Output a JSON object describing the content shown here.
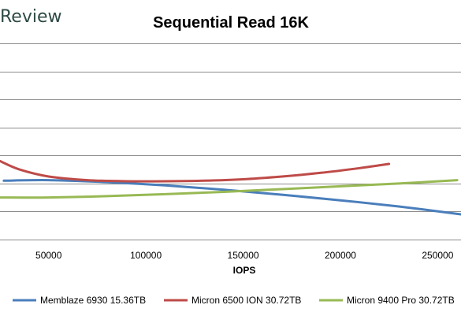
{
  "watermark": "Review",
  "chart_data": {
    "type": "line",
    "title": "Sequential Read 16K",
    "xlabel": "IOPS",
    "ylabel": "",
    "xlim": [
      25000,
      262000
    ],
    "ylim": [
      0,
      7
    ],
    "y_gridlines": [
      0,
      1,
      2,
      3,
      4,
      5,
      6,
      7
    ],
    "x_ticks": [
      50000,
      100000,
      150000,
      200000,
      250000
    ],
    "x_tick_labels": [
      "50000",
      "100000",
      "150000",
      "200000",
      "250000"
    ],
    "grid": "horizontal",
    "legend_position": "bottom",
    "series": [
      {
        "name": "Memblaze 6930 15.36TB",
        "color": "#4a7ebb",
        "x": [
          27000,
          50000,
          80000,
          110000,
          140000,
          170000,
          200000,
          230000,
          262000
        ],
        "y": [
          4.9,
          4.88,
          4.95,
          5.07,
          5.22,
          5.4,
          5.6,
          5.82,
          6.1
        ]
      },
      {
        "name": "Micron 6500 ION 30.72TB",
        "color": "#be4b48",
        "x": [
          25000,
          35000,
          50000,
          70000,
          90000,
          110000,
          130000,
          150000,
          170000,
          190000,
          210000,
          225000
        ],
        "y": [
          4.2,
          4.5,
          4.75,
          4.88,
          4.92,
          4.92,
          4.9,
          4.85,
          4.75,
          4.62,
          4.45,
          4.3
        ]
      },
      {
        "name": "Micron 9400 Pro 30.72TB",
        "color": "#98b954",
        "x": [
          25000,
          50000,
          80000,
          110000,
          140000,
          170000,
          200000,
          230000,
          260000
        ],
        "y": [
          5.5,
          5.5,
          5.45,
          5.38,
          5.3,
          5.2,
          5.1,
          5.0,
          4.88
        ]
      }
    ]
  }
}
